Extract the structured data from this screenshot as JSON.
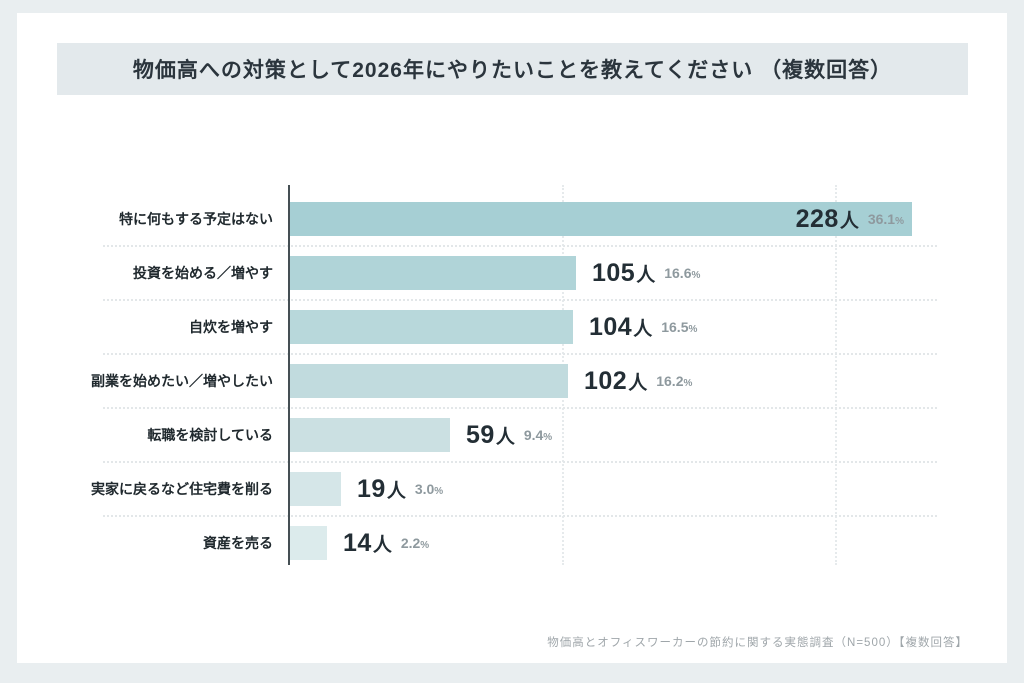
{
  "window": {
    "background_color": "#e9eef0",
    "card_color": "#ffffff"
  },
  "header": {
    "title": "物価高への対策として2026年にやりたいことを教えてください （複数回答）",
    "band_color": "#e3e9ec",
    "text_color": "#2b353d"
  },
  "chart_data": {
    "type": "bar",
    "orientation": "horizontal",
    "title": "物価高への対策として2026年にやりたいことを教えてください （複数回答）",
    "unit": "人",
    "categories": [
      "特に何もする予定はない",
      "投資を始める／増やす",
      "自炊を増やす",
      "副業を始めたい／増やしたい",
      "転職を検討している",
      "実家に戻るなど住宅費を削る",
      "資産を売る"
    ],
    "values": [
      228,
      105,
      104,
      102,
      59,
      19,
      14
    ],
    "percents": [
      "36.1",
      "16.6",
      "16.5",
      "16.2",
      "9.4",
      "3.0",
      "2.2"
    ],
    "n_total": 500,
    "xlim": [
      0,
      230
    ],
    "gridline_values": [
      100,
      200
    ],
    "grid": "dotted",
    "legend": "none",
    "bar_colors": [
      "#a6cfd4",
      "#b0d4d8",
      "#b8d8db",
      "#c1dbde",
      "#cbe0e2",
      "#d5e6e8",
      "#dcebec"
    ],
    "value_text_color": "#232e35",
    "percent_text_color": "#8e999e",
    "axis_line_color": "#454f54"
  },
  "footer": {
    "source_note": "物価高とオフィスワーカーの節約に関する実態調査（N=500）【複数回答】",
    "text_color": "#9fa6aa"
  }
}
